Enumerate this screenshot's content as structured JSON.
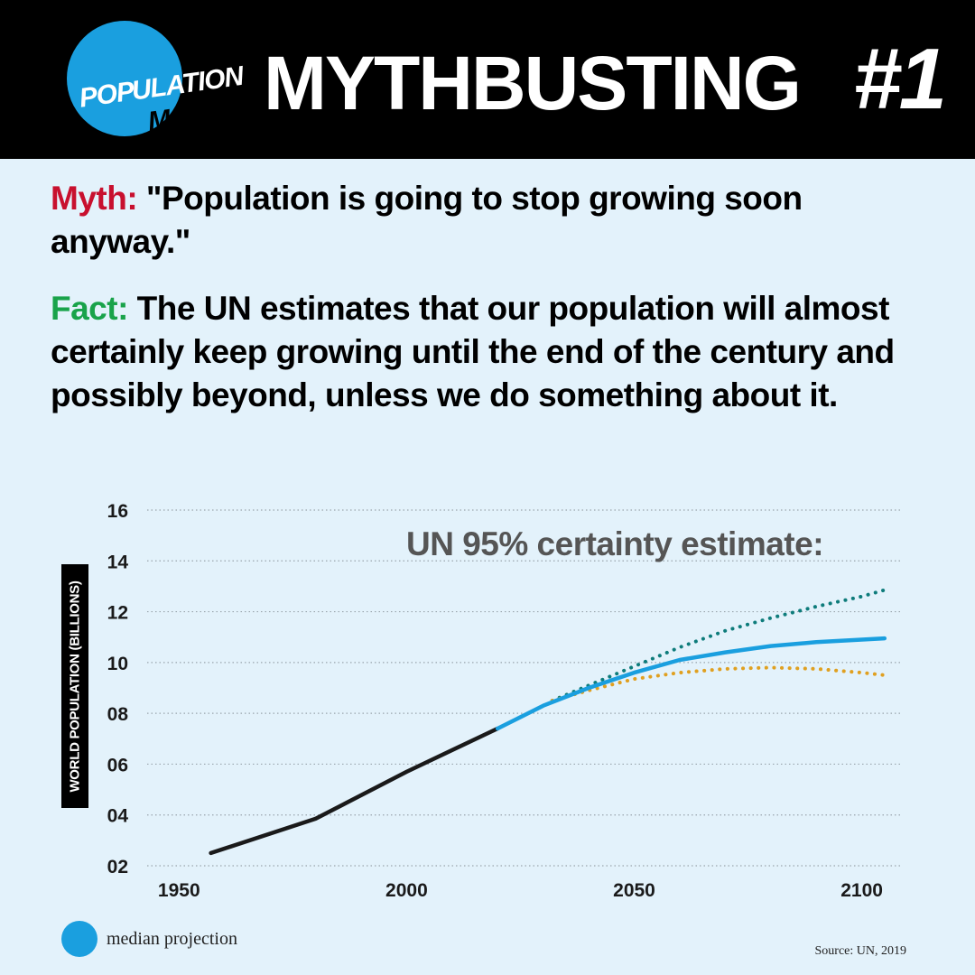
{
  "header": {
    "logo": {
      "part1": "POP",
      "part2": "ULATION",
      "part3": "MATTERS"
    },
    "title": "MYTHBUSTING",
    "number": "#1"
  },
  "myth": {
    "label": "Myth:",
    "text": " \"Population is going to stop growing soon anyway.\""
  },
  "fact": {
    "label": "Fact:",
    "text": " The UN estimates that our population will almost certainly keep growing until the end of the century and possibly beyond, unless we do something about it."
  },
  "colors": {
    "header_bg": "#000000",
    "background": "#e3f2fb",
    "brand_blue": "#1a9fdf",
    "myth_red": "#c8102e",
    "fact_green": "#19a34a",
    "historical": "#1a1a1a",
    "upper_bound": "#0e7c7b",
    "lower_bound": "#e0a020"
  },
  "chart_data": {
    "type": "line",
    "ylabel": "WORLD POPULATION (BILLIONS)",
    "y_ticks": [
      "16",
      "14",
      "12",
      "10",
      "08",
      "06",
      "04",
      "02"
    ],
    "x_ticks": [
      "1950",
      "2000",
      "2050",
      "2100"
    ],
    "xlim": [
      1943,
      2109
    ],
    "ylim": [
      2,
      16
    ],
    "grid": "horizontal dotted",
    "annotation": "UN 95% certainty estimate:",
    "legend": {
      "label": "median projection",
      "position": "bottom-left"
    },
    "source": "Source: UN, 2019",
    "series": [
      {
        "style": "solid",
        "color": "#1a1a1a",
        "points": [
          [
            1957,
            2.5
          ],
          [
            1980,
            3.85
          ],
          [
            2000,
            5.7
          ],
          [
            2020,
            7.4
          ]
        ]
      },
      {
        "name": "median projection",
        "style": "solid",
        "color": "#1a9fdf",
        "points": [
          [
            2020,
            7.4
          ],
          [
            2030,
            8.3
          ],
          [
            2040,
            9.0
          ],
          [
            2050,
            9.6
          ],
          [
            2060,
            10.1
          ],
          [
            2070,
            10.4
          ],
          [
            2080,
            10.65
          ],
          [
            2090,
            10.8
          ],
          [
            2100,
            10.9
          ],
          [
            2105,
            10.95
          ]
        ]
      },
      {
        "style": "dotted",
        "color": "#0e7c7b",
        "points": [
          [
            2032,
            8.5
          ],
          [
            2040,
            9.1
          ],
          [
            2050,
            9.85
          ],
          [
            2060,
            10.6
          ],
          [
            2070,
            11.25
          ],
          [
            2080,
            11.75
          ],
          [
            2090,
            12.2
          ],
          [
            2100,
            12.6
          ],
          [
            2105,
            12.85
          ]
        ]
      },
      {
        "style": "dotted",
        "color": "#e0a020",
        "points": [
          [
            2032,
            8.5
          ],
          [
            2040,
            8.9
          ],
          [
            2050,
            9.35
          ],
          [
            2060,
            9.6
          ],
          [
            2070,
            9.75
          ],
          [
            2080,
            9.8
          ],
          [
            2090,
            9.75
          ],
          [
            2100,
            9.6
          ],
          [
            2105,
            9.5
          ]
        ]
      }
    ]
  }
}
